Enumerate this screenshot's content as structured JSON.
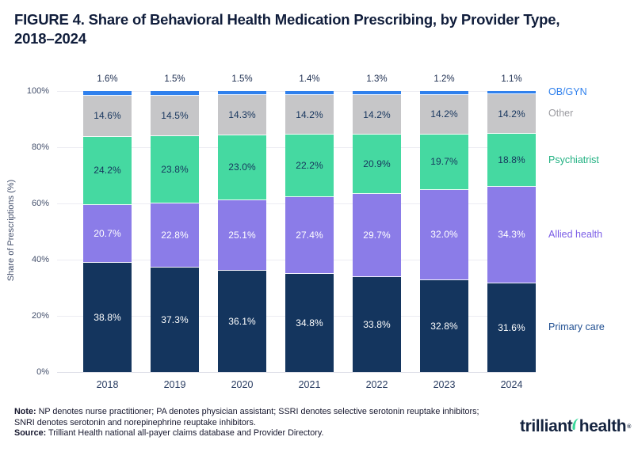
{
  "figure": {
    "title_line1": "FIGURE 4. Share of Behavioral Health Medication Prescribing, by Provider Type,",
    "title_line2": "2018–2024"
  },
  "chart_data": {
    "type": "bar",
    "stacked": true,
    "title": "FIGURE 4. Share of Behavioral Health Medication Prescribing, by Provider Type, 2018–2024",
    "xlabel": "",
    "ylabel": "Share of Prescriptions (%)",
    "ylim": [
      0,
      100
    ],
    "yticks": [
      0,
      20,
      40,
      60,
      80,
      100
    ],
    "ytick_labels": [
      "0%",
      "20%",
      "40%",
      "60%",
      "80%",
      "100%"
    ],
    "grid": true,
    "legend_position": "right",
    "categories": [
      "2018",
      "2019",
      "2020",
      "2021",
      "2022",
      "2023",
      "2024"
    ],
    "series": [
      {
        "name": "Primary care",
        "color": "#14355E",
        "label_color": "#FFFFFF",
        "legend_color": "#1F4E91",
        "values": [
          38.8,
          37.3,
          36.1,
          34.8,
          33.8,
          32.8,
          31.6
        ]
      },
      {
        "name": "Allied health",
        "color": "#8B7CE8",
        "label_color": "#FFFFFF",
        "legend_color": "#7A5CE6",
        "values": [
          20.7,
          22.8,
          25.1,
          27.4,
          29.7,
          32.0,
          34.3
        ]
      },
      {
        "name": "Psychiatrist",
        "color": "#45D9A1",
        "label_color": "#16355D",
        "legend_color": "#21B182",
        "values": [
          24.2,
          23.8,
          23.0,
          22.2,
          20.9,
          19.7,
          18.8
        ]
      },
      {
        "name": "Other",
        "color": "#C6C6C8",
        "label_color": "#16355D",
        "legend_color": "#9B9BA0",
        "values": [
          14.6,
          14.5,
          14.3,
          14.2,
          14.2,
          14.2,
          14.2
        ]
      },
      {
        "name": "OB/GYN",
        "color": "#2F80ED",
        "label_color": null,
        "label_position": "above",
        "legend_color": "#2F80ED",
        "values": [
          1.6,
          1.5,
          1.5,
          1.4,
          1.3,
          1.2,
          1.1
        ]
      }
    ]
  },
  "footnote": {
    "note_label": "Note:",
    "note_text": " NP denotes nurse practitioner; PA denotes physician assistant; SSRI denotes selective serotonin reuptake inhibitors; SNRI denotes serotonin and norepinephrine reuptake inhibitors.",
    "source_label": "Source:",
    "source_text": " Trilliant Health national all-payer claims database and Provider Directory."
  },
  "logo": {
    "part1": "trilliant",
    "part2": "health",
    "registered_mark": "®",
    "swoosh_color": "#3BD79B",
    "text_color": "#14233F"
  }
}
